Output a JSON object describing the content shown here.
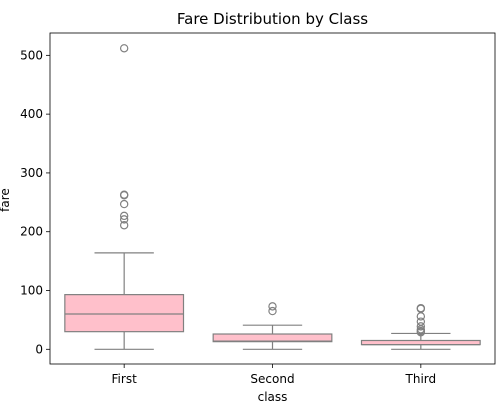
{
  "chart_data": {
    "type": "box",
    "title": "Fare Distribution by Class",
    "xlabel": "class",
    "ylabel": "fare",
    "categories": [
      "First",
      "Second",
      "Third"
    ],
    "ylim": [
      -25,
      538
    ],
    "yticks": [
      0,
      100,
      200,
      300,
      400,
      500
    ],
    "grid": false,
    "box_color": "#ffc0cb",
    "line_color": "#808080",
    "boxes": [
      {
        "category": "First",
        "whisker_low": 0,
        "q1": 30,
        "median": 60,
        "q3": 93,
        "whisker_high": 164,
        "outliers": [
          211,
          221,
          227,
          247,
          262,
          263,
          512
        ]
      },
      {
        "category": "Second",
        "whisker_low": 0,
        "q1": 13,
        "median": 14,
        "q3": 26,
        "whisker_high": 41,
        "outliers": [
          65,
          73
        ]
      },
      {
        "category": "Third",
        "whisker_low": 0,
        "q1": 8,
        "median": 8,
        "q3": 15,
        "whisker_high": 27,
        "outliers": [
          29,
          31,
          34,
          39,
          47,
          56,
          69,
          70
        ]
      }
    ]
  }
}
